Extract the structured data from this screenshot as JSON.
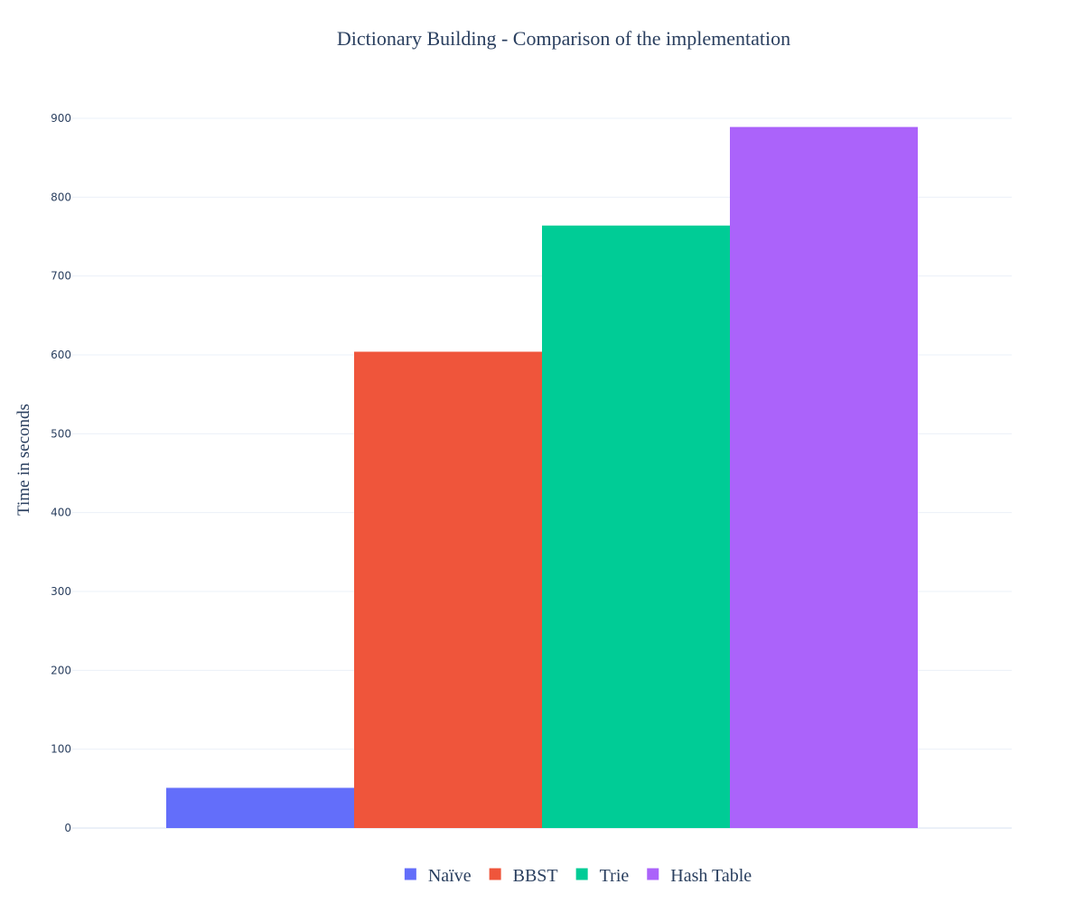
{
  "chart_data": {
    "type": "bar",
    "title": "Dictionary Building - Comparison of the implementation",
    "xlabel": "",
    "ylabel": "Time in seconds",
    "ylim": [
      0,
      900
    ],
    "yticks": [
      0,
      100,
      200,
      300,
      400,
      500,
      600,
      700,
      800,
      900
    ],
    "grid": true,
    "legend_position": "bottom-center",
    "series": [
      {
        "name": "Naïve",
        "value": 51,
        "color": "#636efa"
      },
      {
        "name": "BBST",
        "value": 604,
        "color": "#ef553b"
      },
      {
        "name": "Trie",
        "value": 764,
        "color": "#00cc96"
      },
      {
        "name": "Hash Table",
        "value": 889,
        "color": "#ab63fa"
      }
    ]
  }
}
